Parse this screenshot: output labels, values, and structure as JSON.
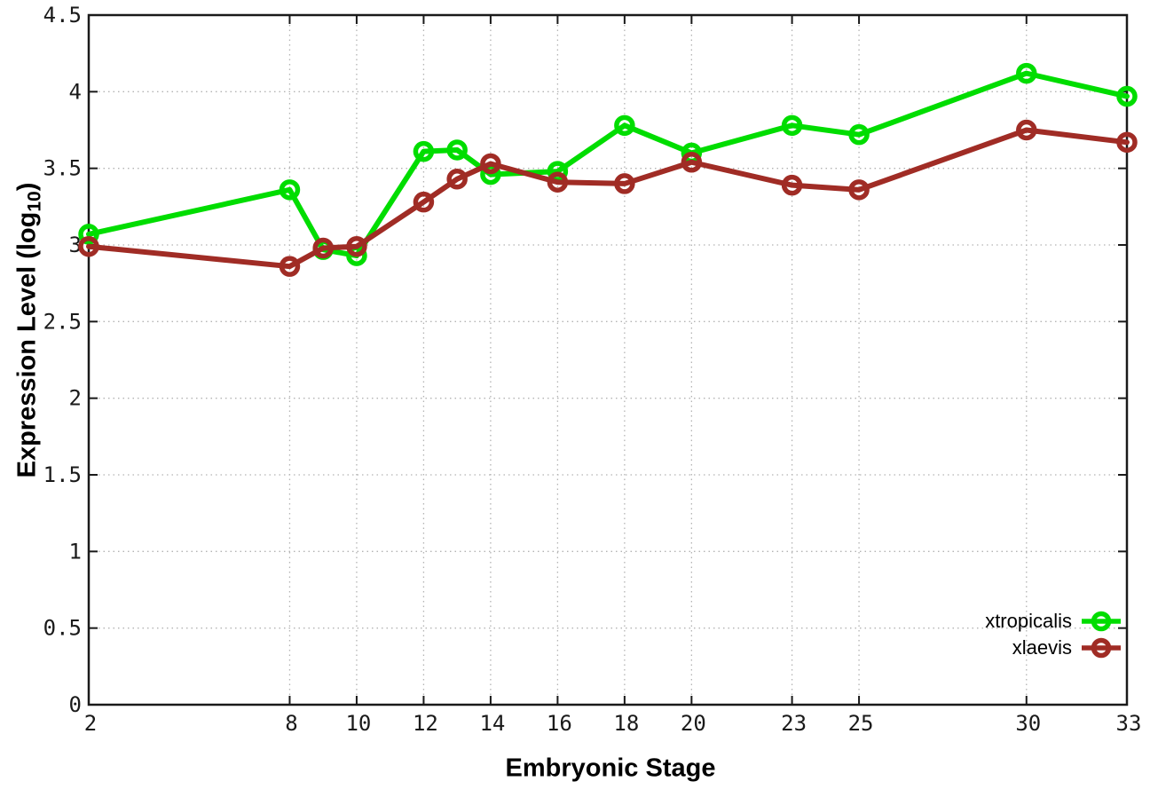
{
  "labels": {
    "y_prefix": "Expression Level (log",
    "y_sub": "10",
    "y_suffix": ")"
  },
  "chart_data": {
    "type": "line",
    "title": "",
    "xlabel": "Embryonic Stage",
    "ylabel": "Expression Level (log10)",
    "xlim": [
      2,
      33
    ],
    "ylim": [
      0,
      4.5
    ],
    "grid": true,
    "legend_position": "bottom-right-inside",
    "x": [
      2,
      8,
      9,
      10,
      12,
      13,
      14,
      16,
      18,
      20,
      23,
      25,
      30,
      33
    ],
    "x_tick_values": [
      2,
      8,
      10,
      12,
      14,
      16,
      18,
      20,
      23,
      25,
      30,
      33
    ],
    "x_tick_labels": [
      "2",
      "8",
      "10",
      "12",
      "14",
      "16",
      "18",
      "20",
      "23",
      "25",
      "30",
      "33"
    ],
    "y_tick_values": [
      0,
      0.5,
      1,
      1.5,
      2,
      2.5,
      3,
      3.5,
      4,
      4.5
    ],
    "y_tick_labels": [
      "0",
      "0.5",
      "1",
      "1.5",
      "2",
      "2.5",
      "3",
      "3.5",
      "4",
      "4.5"
    ],
    "series": [
      {
        "name": "xtropicalis",
        "color": "#00dd00",
        "values": [
          3.07,
          3.36,
          2.97,
          2.93,
          3.61,
          3.62,
          3.46,
          3.48,
          3.78,
          3.6,
          3.78,
          3.72,
          4.12,
          3.97
        ]
      },
      {
        "name": "xlaevis",
        "color": "#a02c25",
        "values": [
          2.99,
          2.86,
          2.98,
          2.99,
          3.28,
          3.43,
          3.53,
          3.41,
          3.4,
          3.54,
          3.39,
          3.36,
          3.75,
          3.67
        ]
      }
    ],
    "style": {
      "background": "#ffffff",
      "border_color": "#1a1a1a",
      "grid_color": "#b3b3b3",
      "tick_label_color": "#1a1a1a"
    }
  }
}
